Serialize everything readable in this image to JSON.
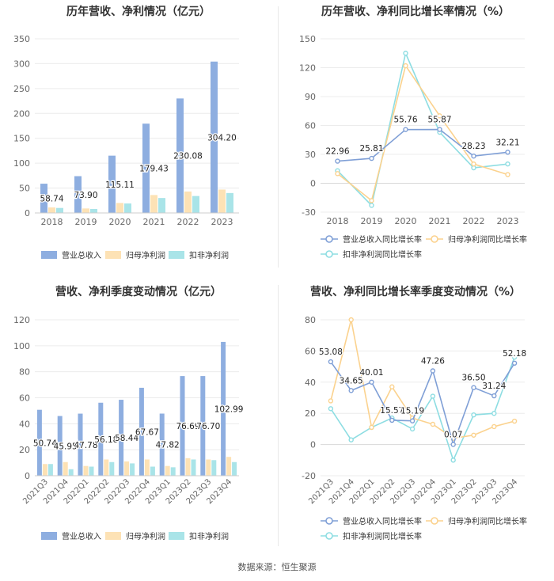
{
  "source": "数据来源：恒生聚源",
  "colors": {
    "revenue": "#8eaee0",
    "netprofit": "#fde2b5",
    "deducted": "#a9e4e8",
    "revenue_line": "#7f9fd6",
    "netprofit_line": "#fbd28e",
    "deducted_line": "#8ddde2"
  },
  "chart_data": [
    {
      "id": "annual-bar",
      "type": "bar",
      "title": "历年营收、净利情况（亿元）",
      "categories": [
        "2018",
        "2019",
        "2020",
        "2021",
        "2022",
        "2023"
      ],
      "ylim": [
        0,
        350
      ],
      "yticks": [
        0,
        50,
        100,
        150,
        200,
        250,
        300,
        350
      ],
      "series": [
        {
          "name": "营业总收入",
          "values": [
            58.74,
            73.9,
            115.11,
            179.43,
            230.08,
            304.2
          ],
          "labels": [
            "58.74",
            "73.90",
            "115.11",
            "179.43",
            "230.08",
            "304.20"
          ]
        },
        {
          "name": "归母净利润",
          "values": [
            11,
            9,
            20,
            36,
            43,
            47
          ]
        },
        {
          "name": "扣非净利润",
          "values": [
            10,
            8,
            19,
            30,
            34,
            40
          ]
        }
      ]
    },
    {
      "id": "annual-line",
      "type": "line",
      "title": "历年营收、净利同比增长率情况（%）",
      "categories": [
        "2018",
        "2019",
        "2020",
        "2021",
        "2022",
        "2023"
      ],
      "ylim": [
        -30,
        150
      ],
      "yticks": [
        -30,
        0,
        30,
        60,
        90,
        120,
        150
      ],
      "series": [
        {
          "name": "营业总收入同比增长率",
          "values": [
            22.96,
            25.81,
            55.76,
            55.87,
            28.23,
            32.21
          ],
          "labels": [
            "22.96",
            "25.81",
            "55.76",
            "55.87",
            "28.23",
            "32.21"
          ]
        },
        {
          "name": "归母净利润同比增长率",
          "values": [
            10,
            -18,
            122,
            70,
            20,
            9
          ]
        },
        {
          "name": "扣非净利润同比增长率",
          "values": [
            13,
            -23,
            135,
            53,
            16,
            20
          ]
        }
      ]
    },
    {
      "id": "quarterly-bar",
      "type": "bar",
      "title": "营收、净利季度变动情况（亿元）",
      "categories": [
        "2021Q3",
        "2021Q4",
        "2022Q1",
        "2022Q2",
        "2022Q3",
        "2022Q4",
        "2023Q1",
        "2023Q2",
        "2023Q3",
        "2023Q4"
      ],
      "ylim": [
        0,
        120
      ],
      "yticks": [
        0,
        20,
        40,
        60,
        80,
        100,
        120
      ],
      "series": [
        {
          "name": "营业总收入",
          "values": [
            50.74,
            45.95,
            47.78,
            56.18,
            58.44,
            67.67,
            47.82,
            76.69,
            76.7,
            102.99
          ],
          "labels": [
            "50.74",
            "45.95",
            "47.78",
            "56.18",
            "58.44",
            "67.67",
            "47.82",
            "76.69",
            "76.70",
            "102.99"
          ]
        },
        {
          "name": "归母净利润",
          "values": [
            9,
            10.5,
            7.5,
            12.5,
            11,
            12.5,
            7.5,
            13.5,
            12.5,
            14.5
          ]
        },
        {
          "name": "扣非净利润",
          "values": [
            9,
            5,
            7,
            10.5,
            9.5,
            7,
            6.5,
            12.5,
            12,
            10.5
          ]
        }
      ]
    },
    {
      "id": "quarterly-line",
      "type": "line",
      "title": "营收、净利同比增长率季度变动情况（%）",
      "categories": [
        "2021Q3",
        "2021Q4",
        "2022Q1",
        "2022Q2",
        "2022Q3",
        "2022Q4",
        "2023Q1",
        "2023Q2",
        "2023Q3",
        "2023Q4"
      ],
      "ylim": [
        -20,
        80
      ],
      "yticks": [
        -20,
        0,
        20,
        40,
        60,
        80
      ],
      "series": [
        {
          "name": "营业总收入同比增长率",
          "values": [
            53.08,
            34.65,
            40.01,
            15.57,
            15.19,
            47.26,
            0.07,
            36.5,
            31.24,
            52.18
          ],
          "labels": [
            "53.08",
            "34.65",
            "40.01",
            "15.57",
            "15.19",
            "47.26",
            "0.07",
            "36.50",
            "31.24",
            "52.18"
          ]
        },
        {
          "name": "归母净利润同比增长率",
          "values": [
            28,
            80,
            11,
            37,
            17,
            13,
            4,
            6,
            11.5,
            15
          ]
        },
        {
          "name": "扣非净利润同比增长率",
          "values": [
            23,
            3,
            11,
            17,
            10,
            31,
            -10,
            19,
            20,
            56
          ]
        }
      ]
    }
  ]
}
